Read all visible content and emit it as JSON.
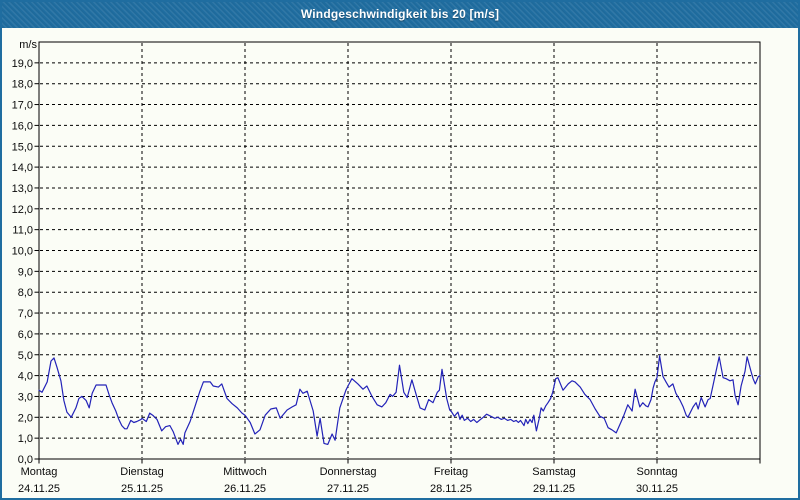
{
  "window": {
    "title": "Windgeschwindigkeit bis 20 [m/s]",
    "titlebar_color": "#1F6DA0",
    "border_color": "#1F6DA0",
    "background_color": "#FBFDF6"
  },
  "chart_data": {
    "type": "line",
    "title": "Windgeschwindigkeit bis 20 [m/s]",
    "unit_label": "m/s",
    "line_color": "#2323B8",
    "grid": "dashed",
    "legend_position": "none",
    "ylim": [
      0,
      20
    ],
    "ytick_step": 1,
    "ytick_labels": [
      "0,0",
      "1,0",
      "2,0",
      "3,0",
      "4,0",
      "5,0",
      "6,0",
      "7,0",
      "8,0",
      "9,0",
      "10,0",
      "11,0",
      "12,0",
      "13,0",
      "14,0",
      "15,0",
      "16,0",
      "17,0",
      "18,0",
      "19,0"
    ],
    "x_hours_total": 168,
    "x_days": [
      {
        "weekday": "Montag",
        "date": "24.11.25"
      },
      {
        "weekday": "Dienstag",
        "date": "25.11.25"
      },
      {
        "weekday": "Mittwoch",
        "date": "26.11.25"
      },
      {
        "weekday": "Donnerstag",
        "date": "27.11.25"
      },
      {
        "weekday": "Freitag",
        "date": "28.11.25"
      },
      {
        "weekday": "Samstag",
        "date": "29.11.25"
      },
      {
        "weekday": "Sonntag",
        "date": "30.11.25"
      }
    ],
    "series": [
      {
        "name": "Windgeschwindigkeit",
        "points": [
          [
            0,
            3.3
          ],
          [
            0.7,
            3.2
          ],
          [
            1.9,
            3.7
          ],
          [
            2.8,
            4.7
          ],
          [
            3.5,
            4.85
          ],
          [
            4.2,
            4.4
          ],
          [
            5.1,
            3.75
          ],
          [
            5.8,
            2.8
          ],
          [
            6.5,
            2.25
          ],
          [
            7.5,
            2.0
          ],
          [
            8.6,
            2.45
          ],
          [
            9.3,
            2.9
          ],
          [
            10,
            3.0
          ],
          [
            11,
            2.8
          ],
          [
            11.7,
            2.45
          ],
          [
            12.4,
            3.15
          ],
          [
            13.3,
            3.55
          ],
          [
            15.6,
            3.55
          ],
          [
            16.3,
            3.1
          ],
          [
            17,
            2.7
          ],
          [
            17.9,
            2.3
          ],
          [
            18.6,
            1.9
          ],
          [
            19.3,
            1.6
          ],
          [
            20,
            1.45
          ],
          [
            20.5,
            1.45
          ],
          [
            21.4,
            1.85
          ],
          [
            22.1,
            1.75
          ],
          [
            22.8,
            1.8
          ],
          [
            23.8,
            1.9
          ],
          [
            24,
            1.95
          ],
          [
            25,
            1.8
          ],
          [
            25.8,
            2.2
          ],
          [
            26.5,
            2.1
          ],
          [
            27.5,
            1.9
          ],
          [
            28.6,
            1.35
          ],
          [
            29.5,
            1.55
          ],
          [
            30.5,
            1.6
          ],
          [
            31.3,
            1.3
          ],
          [
            32.4,
            0.7
          ],
          [
            33,
            0.95
          ],
          [
            33.6,
            0.7
          ],
          [
            34,
            1.25
          ],
          [
            35.2,
            1.8
          ],
          [
            36.4,
            2.55
          ],
          [
            37.5,
            3.25
          ],
          [
            38.3,
            3.7
          ],
          [
            39.9,
            3.7
          ],
          [
            40.6,
            3.5
          ],
          [
            41.8,
            3.45
          ],
          [
            42.6,
            3.6
          ],
          [
            43.8,
            2.9
          ],
          [
            45,
            2.65
          ],
          [
            46.2,
            2.45
          ],
          [
            47.3,
            2.2
          ],
          [
            48,
            2.1
          ],
          [
            49.2,
            1.75
          ],
          [
            50.3,
            1.2
          ],
          [
            51.5,
            1.4
          ],
          [
            52.7,
            2.1
          ],
          [
            54,
            2.4
          ],
          [
            55.3,
            2.45
          ],
          [
            56.2,
            1.95
          ],
          [
            57.8,
            2.35
          ],
          [
            59,
            2.5
          ],
          [
            59.9,
            2.6
          ],
          [
            60.8,
            3.35
          ],
          [
            61.5,
            3.15
          ],
          [
            62.5,
            3.25
          ],
          [
            63.9,
            2.3
          ],
          [
            64.8,
            1.1
          ],
          [
            65.5,
            1.95
          ],
          [
            66.4,
            0.75
          ],
          [
            67.3,
            0.7
          ],
          [
            68.3,
            1.2
          ],
          [
            69,
            0.9
          ],
          [
            70.1,
            2.45
          ],
          [
            71.5,
            3.3
          ],
          [
            72,
            3.5
          ],
          [
            72.9,
            3.85
          ],
          [
            74.3,
            3.6
          ],
          [
            75.5,
            3.35
          ],
          [
            76.4,
            3.5
          ],
          [
            77.6,
            3.0
          ],
          [
            78.8,
            2.6
          ],
          [
            79.9,
            2.5
          ],
          [
            80.8,
            2.7
          ],
          [
            81.8,
            3.1
          ],
          [
            82.4,
            3.0
          ],
          [
            83.2,
            3.2
          ],
          [
            84,
            4.5
          ],
          [
            85,
            3.2
          ],
          [
            85.8,
            2.95
          ],
          [
            86.9,
            3.8
          ],
          [
            88,
            3.0
          ],
          [
            88.8,
            2.45
          ],
          [
            89.9,
            2.35
          ],
          [
            90.8,
            2.85
          ],
          [
            91.8,
            2.7
          ],
          [
            92.8,
            3.2
          ],
          [
            93.3,
            3.3
          ],
          [
            93.9,
            4.3
          ],
          [
            95,
            2.9
          ],
          [
            95.7,
            2.35
          ],
          [
            96,
            2.3
          ],
          [
            96.8,
            2.05
          ],
          [
            97.6,
            2.25
          ],
          [
            98.1,
            1.9
          ],
          [
            98.6,
            2.1
          ],
          [
            99.1,
            1.85
          ],
          [
            99.9,
            1.95
          ],
          [
            100.6,
            1.8
          ],
          [
            101.3,
            1.9
          ],
          [
            102,
            1.75
          ],
          [
            102.6,
            1.85
          ],
          [
            103.5,
            2.0
          ],
          [
            104.3,
            2.15
          ],
          [
            105.3,
            2.05
          ],
          [
            106.2,
            1.95
          ],
          [
            106.9,
            2.0
          ],
          [
            107.7,
            1.9
          ],
          [
            108.4,
            1.95
          ],
          [
            109.2,
            1.85
          ],
          [
            109.9,
            1.9
          ],
          [
            110.6,
            1.8
          ],
          [
            111.2,
            1.85
          ],
          [
            111.7,
            1.75
          ],
          [
            112.2,
            1.85
          ],
          [
            113,
            1.6
          ],
          [
            113.4,
            1.9
          ],
          [
            113.9,
            1.7
          ],
          [
            114.4,
            1.9
          ],
          [
            114.9,
            1.75
          ],
          [
            115.3,
            2.1
          ],
          [
            115.9,
            1.35
          ],
          [
            116.5,
            1.9
          ],
          [
            117,
            2.45
          ],
          [
            117.5,
            2.3
          ],
          [
            118.1,
            2.55
          ],
          [
            118.6,
            2.7
          ],
          [
            119.2,
            2.9
          ],
          [
            119.7,
            3.2
          ],
          [
            120.4,
            3.85
          ],
          [
            120.9,
            3.9
          ],
          [
            122.1,
            3.3
          ],
          [
            123.3,
            3.6
          ],
          [
            124.2,
            3.75
          ],
          [
            124.9,
            3.7
          ],
          [
            126.1,
            3.45
          ],
          [
            127.2,
            3.1
          ],
          [
            128.4,
            2.85
          ],
          [
            129.6,
            2.4
          ],
          [
            130.7,
            2.05
          ],
          [
            131.7,
            1.95
          ],
          [
            132.6,
            1.5
          ],
          [
            133.5,
            1.4
          ],
          [
            134.5,
            1.25
          ],
          [
            136.1,
            2.0
          ],
          [
            137.2,
            2.6
          ],
          [
            138.2,
            2.3
          ],
          [
            138.9,
            3.35
          ],
          [
            140,
            2.5
          ],
          [
            140.7,
            2.7
          ],
          [
            141.4,
            2.55
          ],
          [
            141.9,
            2.5
          ],
          [
            142.6,
            2.85
          ],
          [
            143.1,
            3.4
          ],
          [
            143.5,
            3.7
          ],
          [
            144,
            3.9
          ],
          [
            144.6,
            4.95
          ],
          [
            145.4,
            3.95
          ],
          [
            146.1,
            3.7
          ],
          [
            146.8,
            3.45
          ],
          [
            147.7,
            3.6
          ],
          [
            148.4,
            3.15
          ],
          [
            149.4,
            2.8
          ],
          [
            150.1,
            2.5
          ],
          [
            150.8,
            2.1
          ],
          [
            151.2,
            2.0
          ],
          [
            152.4,
            2.5
          ],
          [
            153.1,
            2.7
          ],
          [
            153.6,
            2.4
          ],
          [
            154.3,
            2.95
          ],
          [
            155.2,
            2.5
          ],
          [
            155.9,
            2.85
          ],
          [
            156.4,
            2.9
          ],
          [
            157.5,
            3.95
          ],
          [
            158.5,
            4.9
          ],
          [
            159.4,
            3.9
          ],
          [
            160.1,
            3.85
          ],
          [
            161,
            3.75
          ],
          [
            161.7,
            3.8
          ],
          [
            162.2,
            3.05
          ],
          [
            162.9,
            2.6
          ],
          [
            163.6,
            3.5
          ],
          [
            164.5,
            4.2
          ],
          [
            165,
            4.9
          ],
          [
            165.9,
            4.2
          ],
          [
            166.4,
            3.85
          ],
          [
            166.9,
            3.6
          ],
          [
            167.6,
            3.95
          ],
          [
            168,
            4.0
          ]
        ]
      }
    ]
  }
}
